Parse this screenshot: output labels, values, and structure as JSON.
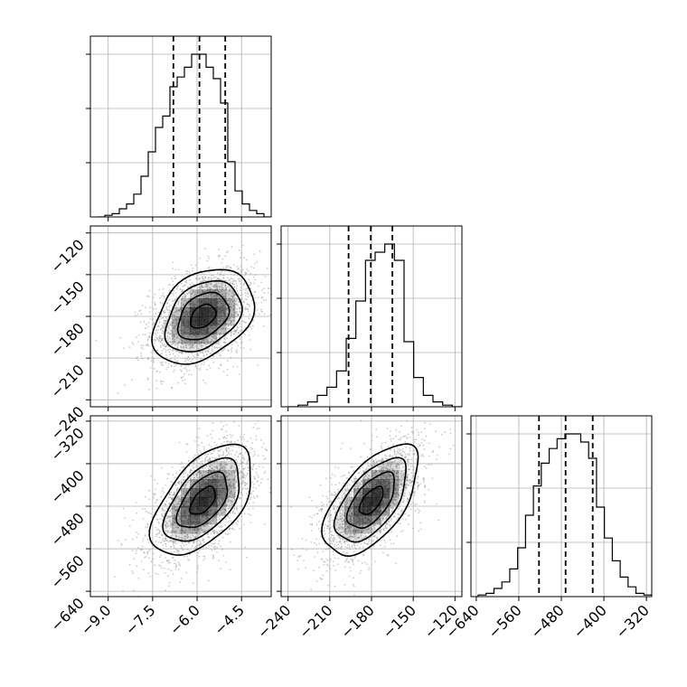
{
  "chart_data": {
    "type": "corner",
    "parameters": [
      {
        "ticks": [
          -9.0,
          -7.5,
          -6.0,
          -4.5
        ],
        "tick_labels": [
          "−9.0",
          "−7.5",
          "−6.0",
          "−4.5"
        ],
        "range": [
          -9.6,
          -3.5
        ],
        "quantiles": [
          -6.8,
          -5.92,
          -5.05
        ],
        "histogram": [
          0,
          1,
          2,
          5,
          8,
          14,
          25,
          40,
          55,
          62,
          80,
          86,
          92,
          100,
          100,
          92,
          85,
          70,
          34,
          16,
          8,
          4,
          2,
          0
        ]
      },
      {
        "ticks": [
          -240,
          -210,
          -180,
          -150,
          -120
        ],
        "tick_labels": [
          "−240",
          "−210",
          "−180",
          "−150",
          "−120"
        ],
        "range": [
          -245,
          -115
        ],
        "quantiles": [
          -196.5,
          -180.5,
          -165
        ],
        "histogram": [
          0,
          1,
          3,
          7,
          12,
          22,
          42,
          65,
          90,
          95,
          100,
          90,
          40,
          18,
          7,
          3,
          1,
          0
        ]
      },
      {
        "ticks": [
          -640,
          -560,
          -480,
          -400,
          -320
        ],
        "tick_labels": [
          "−640",
          "−560",
          "−480",
          "−400",
          "−320"
        ],
        "range": [
          -650,
          -310
        ],
        "quantiles": [
          -522,
          -472,
          -421
        ],
        "histogram": [
          1,
          2,
          5,
          9,
          17,
          30,
          50,
          68,
          82,
          91,
          97,
          100,
          100,
          95,
          85,
          55,
          36,
          22,
          12,
          6,
          2,
          1
        ]
      }
    ],
    "panels": [
      {
        "x_param": 0,
        "y_param": 1,
        "center": [
          -5.8,
          -180
        ],
        "sd": [
          0.85,
          17
        ],
        "rho": 0.35
      },
      {
        "x_param": 0,
        "y_param": 2,
        "center": [
          -5.8,
          -470
        ],
        "sd": [
          0.85,
          52
        ],
        "rho": 0.55
      },
      {
        "x_param": 1,
        "y_param": 2,
        "center": [
          -180,
          -470
        ],
        "sd": [
          17,
          52
        ],
        "rho": 0.6
      }
    ],
    "contour_levels_sigma": [
      0.5,
      1.0,
      1.5,
      2.0
    ],
    "grid": true,
    "colors": {
      "line": "#000000",
      "grid": "#b0b0b0",
      "points": "#9a9a9a",
      "density": "#000000"
    }
  }
}
